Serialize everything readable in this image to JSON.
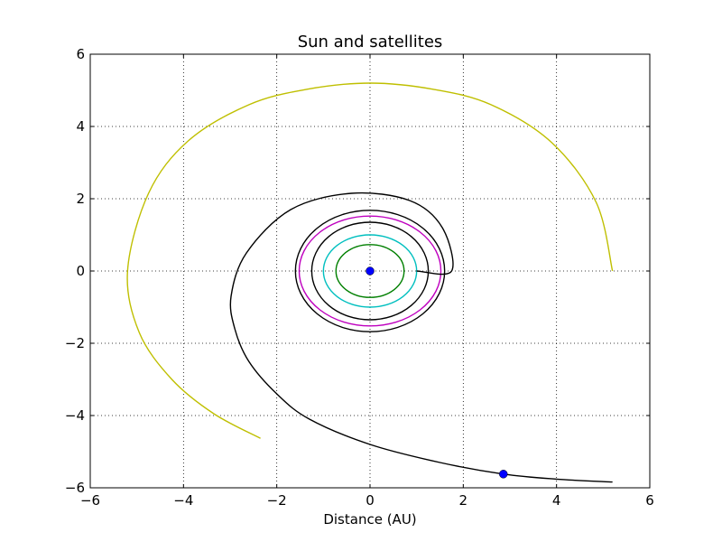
{
  "chart_data": {
    "type": "line",
    "title": "Sun and satellites",
    "xlabel": "Distance (AU)",
    "ylabel": "",
    "xlim": [
      -6,
      6
    ],
    "ylim": [
      -6,
      6
    ],
    "xticks": [
      -6,
      -4,
      -2,
      0,
      2,
      4,
      6
    ],
    "yticks": [
      -6,
      -4,
      -2,
      0,
      2,
      4,
      6
    ],
    "xtick_labels": [
      "−6",
      "−4",
      "−2",
      "0",
      "2",
      "4",
      "6"
    ],
    "ytick_labels": [
      "−6",
      "−4",
      "−2",
      "0",
      "2",
      "4",
      "6"
    ],
    "grid": true,
    "legend": "none",
    "series": [
      {
        "kind": "ellipse",
        "color": "#007f00",
        "cx": 0.0,
        "cy": 0.0,
        "rx": 0.73,
        "ry": 0.73,
        "x": [
          0.73,
          0.63,
          0.365,
          0.0,
          -0.365,
          -0.63,
          -0.73,
          -0.63,
          -0.365,
          0.0,
          0.365,
          0.63,
          0.73
        ],
        "y": [
          0.0,
          0.365,
          0.63,
          0.73,
          0.63,
          0.365,
          0.0,
          -0.365,
          -0.63,
          -0.73,
          -0.63,
          -0.365,
          0.0
        ]
      },
      {
        "kind": "ellipse",
        "color": "#00bfbf",
        "cx": 0.0,
        "cy": 0.0,
        "rx": 1.0,
        "ry": 1.0,
        "x": [
          1.0,
          0.866,
          0.5,
          0.0,
          -0.5,
          -0.866,
          -1.0,
          -0.866,
          -0.5,
          0.0,
          0.5,
          0.866,
          1.0
        ],
        "y": [
          0.0,
          0.5,
          0.866,
          1.0,
          0.866,
          0.5,
          0.0,
          -0.5,
          -0.866,
          -1.0,
          -0.866,
          -0.5,
          0.0
        ]
      },
      {
        "kind": "ellipse",
        "color": "#000000",
        "cx": 0.0,
        "cy": 0.0,
        "rx": 1.25,
        "ry": 1.35,
        "x": [
          1.25,
          1.083,
          0.625,
          0.0,
          -0.625,
          -1.083,
          -1.25,
          -1.083,
          -0.625,
          0.0,
          0.625,
          1.083,
          1.25
        ],
        "y": [
          0.0,
          0.675,
          1.169,
          1.35,
          1.169,
          0.675,
          0.0,
          -0.675,
          -1.169,
          -1.35,
          -1.169,
          -0.675,
          0.0
        ]
      },
      {
        "kind": "ellipse",
        "color": "#bf00bf",
        "cx": 0.0,
        "cy": 0.0,
        "rx": 1.52,
        "ry": 1.52,
        "x": [
          1.52,
          1.316,
          0.76,
          0.0,
          -0.76,
          -1.316,
          -1.52,
          -1.316,
          -0.76,
          0.0,
          0.76,
          1.316,
          1.52
        ],
        "y": [
          0.0,
          0.76,
          1.316,
          1.52,
          1.316,
          0.76,
          0.0,
          -0.76,
          -1.316,
          -1.52,
          -1.316,
          -0.76,
          0.0
        ]
      },
      {
        "kind": "ellipse",
        "color": "#000000",
        "cx": 0.0,
        "cy": 0.0,
        "rx": 1.6,
        "ry": 1.68,
        "x": [
          1.6,
          1.386,
          0.8,
          0.0,
          -0.8,
          -1.386,
          -1.6,
          -1.386,
          -0.8,
          0.0,
          0.8,
          1.386,
          1.6
        ],
        "y": [
          0.0,
          0.84,
          1.455,
          1.68,
          1.455,
          0.84,
          0.0,
          -0.84,
          -1.455,
          -1.68,
          -1.455,
          -0.84,
          0.0
        ]
      },
      {
        "kind": "path",
        "color": "#000000",
        "x": [
          1.0,
          1.75,
          1.55,
          0.85,
          -0.4,
          -1.7,
          -2.65,
          -2.98,
          -2.9,
          -2.6,
          -2.0,
          -1.3,
          0.0,
          1.5,
          2.86,
          4.0,
          5.2
        ],
        "y": [
          0.0,
          0.0,
          1.2,
          1.95,
          2.15,
          1.7,
          0.5,
          -0.7,
          -1.6,
          -2.5,
          -3.4,
          -4.1,
          -4.8,
          -5.3,
          -5.62,
          -5.76,
          -5.84
        ]
      },
      {
        "kind": "path",
        "color": "#bfbf00",
        "x": [
          5.2,
          4.85,
          3.9,
          2.6,
          1.35,
          0.0,
          -1.35,
          -2.6,
          -3.9,
          -4.75,
          -5.2,
          -4.95,
          -4.25,
          -3.35,
          -2.35
        ],
        "y": [
          0.0,
          1.9,
          3.55,
          4.6,
          5.03,
          5.2,
          5.03,
          4.6,
          3.6,
          2.15,
          0.0,
          -1.7,
          -3.0,
          -3.95,
          -4.63
        ]
      },
      {
        "kind": "points",
        "color": "#0000ff",
        "x": [
          0.0,
          2.86
        ],
        "y": [
          0.0,
          -5.62
        ]
      }
    ]
  }
}
